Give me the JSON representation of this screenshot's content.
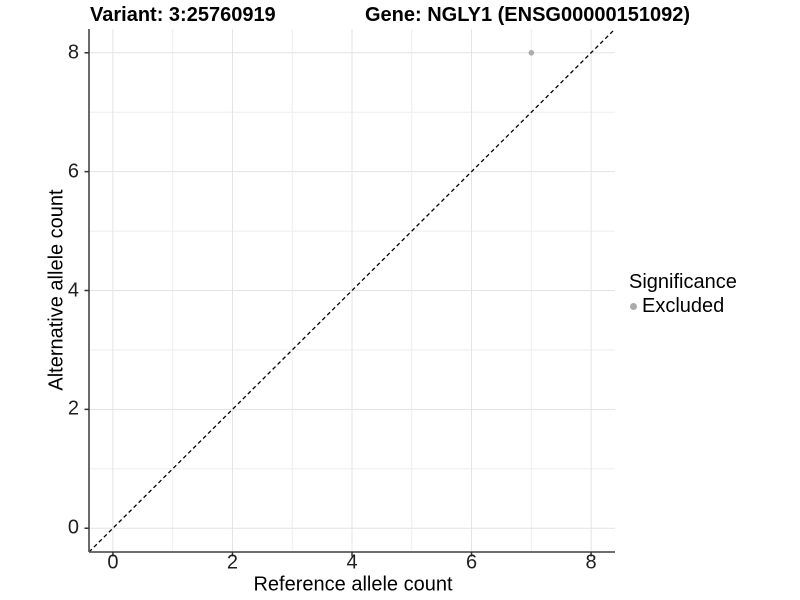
{
  "titles": {
    "variant": "Variant: 3:25760919",
    "gene": "Gene: NGLY1 (ENSG00000151092)"
  },
  "legend": {
    "title": "Significance",
    "items": [
      {
        "label": "Excluded",
        "color": "#ababab",
        "marker": "circle"
      }
    ]
  },
  "chart_data": {
    "type": "scatter",
    "title_left": "Variant: 3:25760919",
    "title_right": "Gene: NGLY1 (ENSG00000151092)",
    "xlabel": "Reference allele count",
    "ylabel": "Alternative allele count",
    "xlim": [
      -0.4,
      8.4
    ],
    "ylim": [
      -0.4,
      8.4
    ],
    "x_ticks": [
      0,
      2,
      4,
      6,
      8
    ],
    "y_ticks": [
      0,
      2,
      4,
      6,
      8
    ],
    "x_minor_gridlines": [
      1,
      3,
      5,
      7
    ],
    "y_minor_gridlines": [
      1,
      3,
      5,
      7
    ],
    "grid": true,
    "legend_position": "right",
    "reference_line": {
      "style": "dashed",
      "from": [
        -0.4,
        -0.4
      ],
      "to": [
        8.4,
        8.4
      ],
      "color": "#000000"
    },
    "series": [
      {
        "name": "Excluded",
        "color": "#ababab",
        "points": [
          {
            "x": 7,
            "y": 8
          }
        ]
      }
    ],
    "colors": {
      "grid_major": "#e3e3e3",
      "grid_minor": "#eeeeee",
      "axis_line": "#595959",
      "tick_mark": "#333333",
      "point": "#ababab"
    }
  }
}
